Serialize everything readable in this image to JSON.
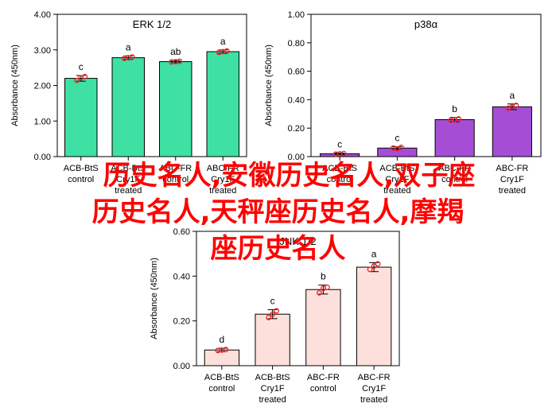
{
  "chart_data": [
    {
      "type": "bar",
      "title": "ERK 1/2",
      "ylabel": "Absorbance (450nm)",
      "xlabel": "",
      "ylim": [
        0,
        4.0
      ],
      "yticks": [
        "0.00",
        "1.00",
        "2.00",
        "3.00",
        "4.00"
      ],
      "categories": [
        [
          "ACB-BtS",
          "control"
        ],
        [
          "ACB-BtS",
          "Cry1F",
          "treated"
        ],
        [
          "ABC-FR",
          "control"
        ],
        [
          "ABC-FR",
          "Cry1F",
          "treated"
        ]
      ],
      "values": [
        2.2,
        2.78,
        2.67,
        2.95
      ],
      "errors": [
        0.08,
        0.05,
        0.03,
        0.05
      ],
      "replicates": [
        [
          2.14,
          2.25,
          2.22
        ],
        [
          2.76,
          2.8,
          2.78
        ],
        [
          2.66,
          2.68,
          2.67
        ],
        [
          2.93,
          2.97,
          2.95
        ]
      ],
      "letters": [
        "c",
        "a",
        "ab",
        "a"
      ],
      "bar_color": "#3fe0a3",
      "grid": false
    },
    {
      "type": "bar",
      "title": "p38α",
      "ylabel": "Absorbance (450nm)",
      "xlabel": "",
      "ylim": [
        0,
        1.0
      ],
      "yticks": [
        "0.00",
        "0.20",
        "0.40",
        "0.60",
        "0.80",
        "1.00"
      ],
      "categories": [
        [
          "ACB-BtS",
          "control"
        ],
        [
          "ACB-BtS",
          "Cry1F",
          "treated"
        ],
        [
          "ABC-FR",
          "control"
        ],
        [
          "ABC-FR",
          "Cry1F",
          "treated"
        ]
      ],
      "values": [
        0.02,
        0.06,
        0.26,
        0.35
      ],
      "errors": [
        0.005,
        0.01,
        0.015,
        0.02
      ],
      "replicates": [
        [
          0.018,
          0.022,
          0.02
        ],
        [
          0.06,
          0.065,
          0.055
        ],
        [
          0.255,
          0.265,
          0.26
        ],
        [
          0.34,
          0.36,
          0.35
        ]
      ],
      "letters": [
        "c",
        "c",
        "b",
        "a"
      ],
      "bar_color": "#a64dd6",
      "grid": false
    },
    {
      "type": "bar",
      "title": "JNK 1/2",
      "ylabel": "Absorbance (450nm)",
      "xlabel": "",
      "ylim": [
        0,
        0.6
      ],
      "yticks": [
        "0.00",
        "0.20",
        "0.40",
        "0.60"
      ],
      "categories": [
        [
          "ACB-BtS",
          "control"
        ],
        [
          "ACB-BtS",
          "Cry1F",
          "treated"
        ],
        [
          "ABC-FR",
          "control"
        ],
        [
          "ABC-FR",
          "Cry1F",
          "treated"
        ]
      ],
      "values": [
        0.07,
        0.23,
        0.34,
        0.44
      ],
      "errors": [
        0.008,
        0.02,
        0.02,
        0.02
      ],
      "replicates": [
        [
          0.068,
          0.072,
          0.07
        ],
        [
          0.215,
          0.245,
          0.23
        ],
        [
          0.325,
          0.35,
          0.345
        ],
        [
          0.43,
          0.455,
          0.445
        ]
      ],
      "letters": [
        "d",
        "c",
        "b",
        "a"
      ],
      "bar_color": "#fde0dc",
      "grid": false
    }
  ],
  "overlay": {
    "color": "#ff0000",
    "lines": [
      "历史名人,安徽历史名人,双子座",
      "历史名人,天秤座历史名人,摩羯",
      "座历史名人"
    ]
  }
}
